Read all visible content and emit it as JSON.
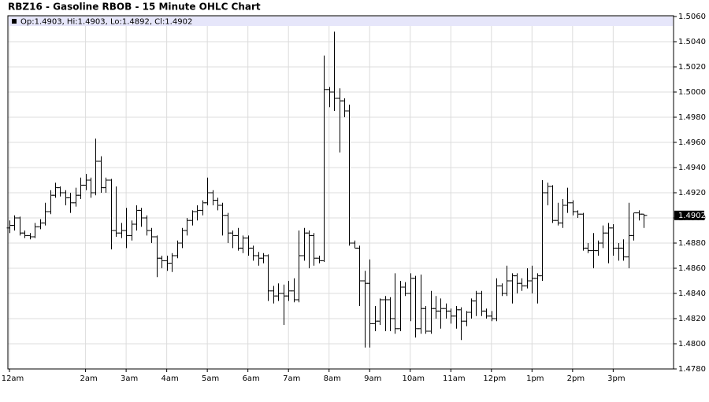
{
  "chart_data": {
    "type": "ohlc",
    "title": "RBZ16 - Gasoline RBOB - 15 Minute OHLC Chart",
    "legend": "Op:1.4903, Hi:1.4903, Lo:1.4892, Cl:1.4902",
    "last_value_label": "1.4902",
    "color": "#000000",
    "grid": true,
    "categories": [
      "12am",
      null,
      null,
      null,
      null,
      null,
      null,
      null,
      null,
      null,
      null,
      null,
      null,
      null,
      null,
      "2am",
      null,
      null,
      null,
      null,
      null,
      null,
      null,
      "3am",
      null,
      null,
      null,
      null,
      null,
      null,
      null,
      "4am",
      null,
      null,
      null,
      null,
      null,
      null,
      null,
      "5am",
      null,
      null,
      null,
      null,
      null,
      null,
      null,
      "6am",
      null,
      null,
      null,
      null,
      null,
      null,
      null,
      "7am",
      null,
      null,
      null,
      null,
      null,
      null,
      null,
      "8am",
      null,
      null,
      null,
      null,
      null,
      null,
      null,
      "9am",
      null,
      null,
      null,
      null,
      null,
      null,
      null,
      "10am",
      null,
      null,
      null,
      null,
      null,
      null,
      null,
      "11am",
      null,
      null,
      null,
      null,
      null,
      null,
      null,
      "12pm",
      null,
      null,
      null,
      null,
      null,
      null,
      null,
      "1pm",
      null,
      null,
      null,
      null,
      null,
      null,
      null,
      "2pm",
      null,
      null,
      null,
      null,
      null,
      null,
      null,
      "3pm",
      null,
      null,
      null,
      null,
      null,
      null
    ],
    "open": [
      1.4892,
      1.4894,
      1.49,
      1.4888,
      1.4886,
      1.4885,
      1.4893,
      1.4896,
      1.4905,
      1.4918,
      1.4924,
      1.492,
      1.4916,
      1.4912,
      1.4918,
      1.4926,
      1.493,
      1.492,
      1.4945,
      1.4924,
      1.493,
      1.489,
      1.4888,
      1.489,
      1.4886,
      1.4895,
      1.4906,
      1.49,
      1.489,
      1.4885,
      1.4868,
      1.4866,
      1.4864,
      1.487,
      1.488,
      1.489,
      1.4898,
      1.4905,
      1.4906,
      1.4912,
      1.492,
      1.4914,
      1.491,
      1.4902,
      1.4888,
      1.4886,
      1.4876,
      1.4884,
      1.4876,
      1.487,
      1.4868,
      1.487,
      1.4842,
      1.4838,
      1.484,
      1.4838,
      1.4842,
      1.4835,
      1.487,
      1.4888,
      1.4886,
      1.4868,
      1.4866,
      1.5002,
      1.5,
      1.4995,
      1.4993,
      1.4985,
      1.488,
      1.4876,
      1.485,
      1.4848,
      1.4816,
      1.4818,
      1.4835,
      1.4835,
      1.482,
      1.4812,
      1.4845,
      1.484,
      1.4852,
      1.4812,
      1.4828,
      1.481,
      1.4828,
      1.4826,
      1.4828,
      1.4826,
      1.4822,
      1.4827,
      1.4818,
      1.4825,
      1.4834,
      1.484,
      1.4826,
      1.4822,
      1.482,
      1.4846,
      1.484,
      1.485,
      1.4854,
      1.4848,
      1.4846,
      1.485,
      1.4852,
      1.4854,
      1.492,
      1.4925,
      1.4898,
      1.4896,
      1.491,
      1.4912,
      1.4905,
      1.4903,
      1.4876,
      1.4874,
      1.4874,
      1.488,
      1.4888,
      1.4892,
      1.4876,
      1.4876,
      1.4869,
      1.4886,
      1.4904,
      1.4903
    ],
    "high": [
      1.4898,
      1.4902,
      1.4901,
      1.489,
      1.4888,
      1.4896,
      1.4899,
      1.4912,
      1.4922,
      1.4928,
      1.4925,
      1.4922,
      1.492,
      1.4924,
      1.4932,
      1.4935,
      1.4932,
      1.4963,
      1.4949,
      1.4932,
      1.4931,
      1.4925,
      1.4896,
      1.4908,
      1.4898,
      1.491,
      1.4908,
      1.4902,
      1.4892,
      1.4886,
      1.487,
      1.487,
      1.4872,
      1.4882,
      1.4892,
      1.49,
      1.4906,
      1.491,
      1.4914,
      1.4932,
      1.4922,
      1.4916,
      1.4912,
      1.4904,
      1.489,
      1.4892,
      1.4886,
      1.4886,
      1.4878,
      1.4873,
      1.4872,
      1.4871,
      1.4846,
      1.4848,
      1.4847,
      1.485,
      1.4852,
      1.489,
      1.4892,
      1.489,
      1.4888,
      1.487,
      1.5029,
      1.5004,
      1.5048,
      1.5003,
      1.4995,
      1.499,
      1.4882,
      1.4878,
      1.4858,
      1.4867,
      1.483,
      1.4836,
      1.4838,
      1.4837,
      1.4856,
      1.485,
      1.4849,
      1.4856,
      1.4854,
      1.4855,
      1.483,
      1.4842,
      1.4838,
      1.4836,
      1.4832,
      1.4828,
      1.483,
      1.4829,
      1.4826,
      1.4836,
      1.4842,
      1.4842,
      1.4828,
      1.4826,
      1.4852,
      1.4848,
      1.4862,
      1.4856,
      1.4856,
      1.4852,
      1.486,
      1.4862,
      1.4856,
      1.493,
      1.4928,
      1.4926,
      1.4912,
      1.4915,
      1.4924,
      1.4914,
      1.4906,
      1.4904,
      1.488,
      1.4888,
      1.4882,
      1.4894,
      1.4896,
      1.4895,
      1.488,
      1.4883,
      1.4912,
      1.4904,
      1.4906,
      1.4903
    ],
    "low": [
      1.4888,
      1.489,
      1.4886,
      1.4884,
      1.4883,
      1.4884,
      1.4891,
      1.4894,
      1.4903,
      1.4916,
      1.4917,
      1.491,
      1.4904,
      1.4909,
      1.4915,
      1.4922,
      1.4916,
      1.4918,
      1.492,
      1.492,
      1.4875,
      1.4885,
      1.4884,
      1.4876,
      1.4882,
      1.489,
      1.4893,
      1.4886,
      1.488,
      1.4853,
      1.486,
      1.4858,
      1.4857,
      1.4868,
      1.4876,
      1.4886,
      1.4894,
      1.4898,
      1.4902,
      1.491,
      1.491,
      1.4906,
      1.4886,
      1.488,
      1.4876,
      1.4874,
      1.4872,
      1.487,
      1.4866,
      1.4862,
      1.4864,
      1.4834,
      1.4832,
      1.4834,
      1.4815,
      1.4834,
      1.4833,
      1.4833,
      1.4866,
      1.486,
      1.4862,
      1.4864,
      1.4865,
      1.4988,
      1.4985,
      1.4952,
      1.498,
      1.4878,
      1.4876,
      1.483,
      1.4797,
      1.4797,
      1.481,
      1.4815,
      1.481,
      1.481,
      1.4808,
      1.481,
      1.4838,
      1.4818,
      1.4805,
      1.4808,
      1.4808,
      1.4808,
      1.482,
      1.4812,
      1.482,
      1.4816,
      1.4812,
      1.4803,
      1.4814,
      1.482,
      1.4822,
      1.4822,
      1.482,
      1.4818,
      1.4818,
      1.4838,
      1.4838,
      1.4832,
      1.484,
      1.4842,
      1.4844,
      1.484,
      1.4832,
      1.485,
      1.491,
      1.4896,
      1.4894,
      1.4892,
      1.4904,
      1.4902,
      1.49,
      1.4874,
      1.4872,
      1.486,
      1.487,
      1.4876,
      1.4864,
      1.487,
      1.4866,
      1.4866,
      1.486,
      1.4882,
      1.4898,
      1.4892
    ],
    "close": [
      1.4894,
      1.49,
      1.4888,
      1.4886,
      1.4885,
      1.4893,
      1.4896,
      1.4905,
      1.4918,
      1.4924,
      1.492,
      1.4916,
      1.4912,
      1.4918,
      1.4926,
      1.493,
      1.492,
      1.4945,
      1.4924,
      1.493,
      1.489,
      1.4888,
      1.489,
      1.4886,
      1.4895,
      1.4906,
      1.49,
      1.489,
      1.4885,
      1.4868,
      1.4866,
      1.4864,
      1.487,
      1.488,
      1.489,
      1.4898,
      1.4905,
      1.4906,
      1.4912,
      1.492,
      1.4914,
      1.491,
      1.4902,
      1.4888,
      1.4886,
      1.4876,
      1.4884,
      1.4876,
      1.487,
      1.4868,
      1.487,
      1.4842,
      1.4838,
      1.484,
      1.4838,
      1.4842,
      1.4835,
      1.487,
      1.4888,
      1.4886,
      1.4868,
      1.4866,
      1.5002,
      1.5,
      1.4995,
      1.4993,
      1.4985,
      1.488,
      1.4876,
      1.485,
      1.4848,
      1.4816,
      1.4818,
      1.4835,
      1.4835,
      1.482,
      1.4812,
      1.4845,
      1.484,
      1.4852,
      1.4812,
      1.4828,
      1.481,
      1.4828,
      1.4826,
      1.4828,
      1.4826,
      1.4822,
      1.4827,
      1.4818,
      1.4825,
      1.4834,
      1.484,
      1.4826,
      1.4822,
      1.482,
      1.4846,
      1.484,
      1.485,
      1.4854,
      1.4848,
      1.4846,
      1.485,
      1.4852,
      1.4854,
      1.492,
      1.4925,
      1.4898,
      1.4896,
      1.491,
      1.4912,
      1.4905,
      1.4903,
      1.4876,
      1.4874,
      1.4874,
      1.488,
      1.4888,
      1.4892,
      1.4876,
      1.4876,
      1.4869,
      1.4886,
      1.4904,
      1.4903,
      1.4902
    ],
    "ylim": [
      1.478,
      1.506
    ],
    "yticks": [
      {
        "value": 1.478,
        "label": "1.4780"
      },
      {
        "value": 1.48,
        "label": "1.4800"
      },
      {
        "value": 1.482,
        "label": "1.4820"
      },
      {
        "value": 1.484,
        "label": "1.4840"
      },
      {
        "value": 1.486,
        "label": "1.4860"
      },
      {
        "value": 1.488,
        "label": "1.4880"
      },
      {
        "value": 1.49,
        "label": "1.4900"
      },
      {
        "value": 1.492,
        "label": "1.4920"
      },
      {
        "value": 1.494,
        "label": "1.4940"
      },
      {
        "value": 1.496,
        "label": "1.4960"
      },
      {
        "value": 1.498,
        "label": "1.4980"
      },
      {
        "value": 1.5,
        "label": "1.5000"
      },
      {
        "value": 1.502,
        "label": "1.5020"
      },
      {
        "value": 1.504,
        "label": "1.5040"
      },
      {
        "value": 1.506,
        "label": "1.5060"
      }
    ]
  }
}
